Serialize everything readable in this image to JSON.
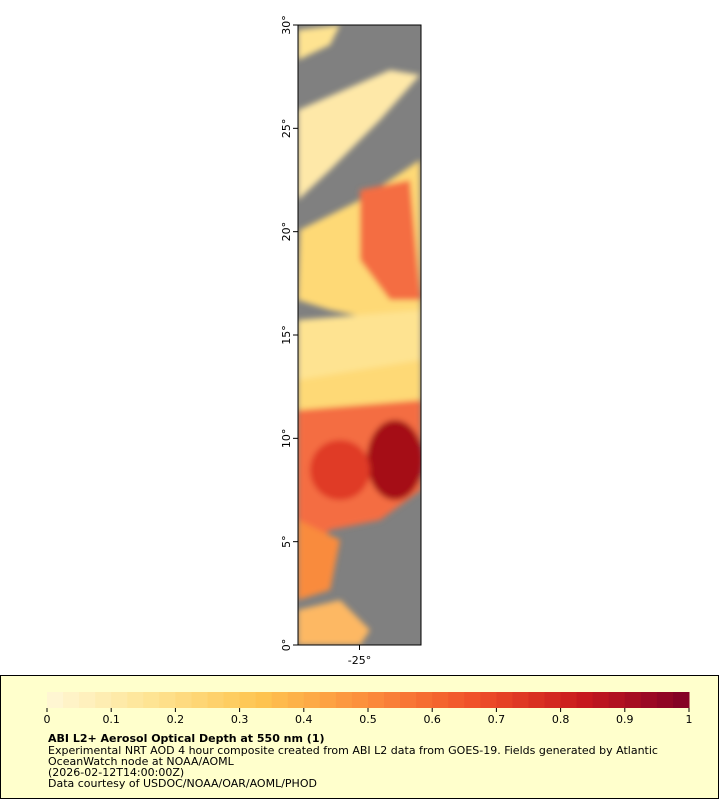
{
  "map": {
    "xlim": [
      -28,
      -22
    ],
    "ylim": [
      0,
      30
    ],
    "xticks": [
      {
        "value": -25,
        "label": "-25°"
      }
    ],
    "yticks": [
      {
        "value": 0,
        "label": "0°"
      },
      {
        "value": 5,
        "label": "5°"
      },
      {
        "value": 10,
        "label": "10°"
      },
      {
        "value": 15,
        "label": "15°"
      },
      {
        "value": 20,
        "label": "20°"
      },
      {
        "value": 25,
        "label": "25°"
      },
      {
        "value": 30,
        "label": "30°"
      }
    ]
  },
  "colorbar": {
    "lim": [
      0,
      1
    ],
    "ticks": [
      0,
      0.1,
      0.2,
      0.3,
      0.4,
      0.5,
      0.6,
      0.7,
      0.8,
      0.9,
      1
    ]
  },
  "legend": {
    "title": "ABI L2+ Aerosol Optical Depth at 550 nm (1)",
    "lines": [
      "Experimental NRT AOD 4 hour composite created from ABI L2 data from GOES-19. Fields generated by Atlantic",
      "OceanWatch node at NOAA/AOML",
      "(2026-02-12T14:00:00Z)",
      "Data courtesy of USDOC/NOAA/OAR/AOML/PHOD"
    ]
  }
}
